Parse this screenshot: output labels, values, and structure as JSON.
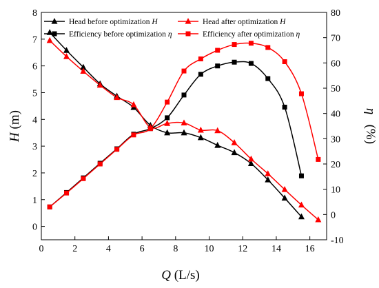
{
  "chart_data": {
    "type": "line",
    "xlabel": "Q (L/s)",
    "xlabel_var": "Q",
    "xlabel_unit": " (L/s)",
    "ylabel_left": "H (m)",
    "ylabel_left_var": "H",
    "ylabel_left_unit": " (m)",
    "ylabel_right": "η (%)",
    "ylabel_right_var": "η",
    "ylabel_right_unit": "   (%)",
    "xlim": [
      0,
      17
    ],
    "xticks": [
      0,
      2,
      4,
      6,
      8,
      10,
      12,
      14,
      16
    ],
    "ylim_left": [
      -0.5,
      8
    ],
    "yticks_left": [
      0,
      1,
      2,
      3,
      4,
      5,
      6,
      7,
      8
    ],
    "ylim_right": [
      -10,
      80
    ],
    "yticks_right": [
      -10,
      0,
      10,
      20,
      30,
      40,
      50,
      60,
      70,
      80
    ],
    "grid": false,
    "legend_position": "top",
    "series": [
      {
        "name": "Head before optimization H",
        "name_plain": "Head before optimization ",
        "name_var": "H",
        "axis": "left",
        "marker": "triangle",
        "color": "#000000",
        "x": [
          0.5,
          1.5,
          2.5,
          3.5,
          4.5,
          5.5,
          6.5,
          7.5,
          8.5,
          9.5,
          10.5,
          11.5,
          12.5,
          13.5,
          14.5,
          15.5
        ],
        "y": [
          7.25,
          6.58,
          5.95,
          5.33,
          4.87,
          4.45,
          3.78,
          3.5,
          3.5,
          3.32,
          3.03,
          2.76,
          2.35,
          1.74,
          1.06,
          0.36
        ]
      },
      {
        "name": "Head after optimization H",
        "name_plain": "Head after optimization ",
        "name_var": "H",
        "axis": "left",
        "marker": "triangle",
        "color": "#ff0000",
        "x": [
          0.5,
          1.5,
          2.5,
          3.5,
          4.5,
          5.5,
          6.5,
          7.5,
          8.5,
          9.5,
          10.5,
          11.5,
          12.5,
          13.5,
          14.5,
          15.5,
          16.5
        ],
        "y": [
          6.95,
          6.35,
          5.8,
          5.28,
          4.82,
          4.55,
          3.7,
          3.85,
          3.87,
          3.6,
          3.58,
          3.13,
          2.52,
          1.97,
          1.38,
          0.8,
          0.25
        ]
      },
      {
        "name": "Efficiency before optimization η",
        "name_plain": "Efficiency before optimization ",
        "name_var": "η",
        "axis": "right",
        "marker": "square",
        "color": "#000000",
        "x": [
          0.5,
          1.5,
          2.5,
          3.5,
          4.5,
          5.5,
          6.5,
          7.5,
          8.5,
          9.5,
          10.5,
          11.5,
          12.5,
          13.5,
          14.5,
          15.5
        ],
        "y": [
          3.0,
          8.7,
          14.5,
          20.3,
          26.0,
          31.8,
          34.0,
          38.3,
          47.3,
          55.5,
          58.8,
          60.3,
          59.8,
          53.8,
          42.5,
          15.3
        ]
      },
      {
        "name": "Efficiency after optimization η",
        "name_plain": "Efficiency after optimization ",
        "name_var": "η",
        "axis": "right",
        "marker": "square",
        "color": "#ff0000",
        "x": [
          0.5,
          1.5,
          2.5,
          3.5,
          4.5,
          5.5,
          6.5,
          7.5,
          8.5,
          9.5,
          10.5,
          11.5,
          12.5,
          13.5,
          14.5,
          15.5,
          16.5
        ],
        "y": [
          3.0,
          8.5,
          14.2,
          20.0,
          25.8,
          31.5,
          34.0,
          44.5,
          56.8,
          61.6,
          65.0,
          67.3,
          67.8,
          66.1,
          60.5,
          47.8,
          21.8
        ]
      }
    ]
  }
}
